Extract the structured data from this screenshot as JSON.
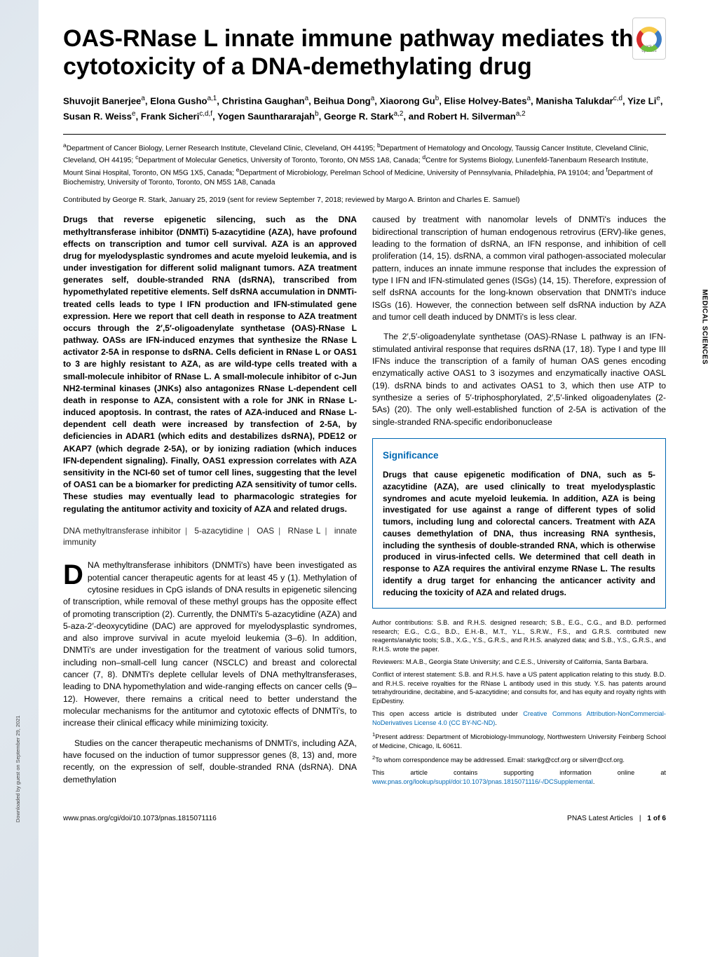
{
  "badge_text": "Check for updates",
  "title": "OAS-RNase L innate immune pathway mediates the cytotoxicity of a DNA-demethylating drug",
  "authors_html": "Shuvojit Banerjee<sup>a</sup>, Elona Gusho<sup>a,1</sup>, Christina Gaughan<sup>a</sup>, Beihua Dong<sup>a</sup>, Xiaorong Gu<sup>b</sup>, Elise Holvey-Bates<sup>a</sup>, Manisha Talukdar<sup>c,d</sup>, Yize Li<sup>e</sup>, Susan R. Weiss<sup>e</sup>, Frank Sicheri<sup>c,d,f</sup>, Yogen Saunthararajah<sup>b</sup>, George R. Stark<sup>a,2</sup>, and Robert H. Silverman<sup>a,2</sup>",
  "affiliations": "<sup>a</sup>Department of Cancer Biology, Lerner Research Institute, Cleveland Clinic, Cleveland, OH 44195; <sup>b</sup>Department of Hematology and Oncology, Taussig Cancer Institute, Cleveland Clinic, Cleveland, OH 44195; <sup>c</sup>Department of Molecular Genetics, University of Toronto, Toronto, ON M5S 1A8, Canada; <sup>d</sup>Centre for Systems Biology, Lunenfeld-Tanenbaum Research Institute, Mount Sinai Hospital, Toronto, ON M5G 1X5, Canada; <sup>e</sup>Department of Microbiology, Perelman School of Medicine, University of Pennsylvania, Philadelphia, PA 19104; and <sup>f</sup>Department of Biochemistry, University of Toronto, Toronto, ON M5S 1A8, Canada",
  "contributed": "Contributed by George R. Stark, January 25, 2019 (sent for review September 7, 2018; reviewed by Margo A. Brinton and Charles E. Samuel)",
  "abstract": "Drugs that reverse epigenetic silencing, such as the DNA methyltransferase inhibitor (DNMTi) 5-azacytidine (AZA), have profound effects on transcription and tumor cell survival. AZA is an approved drug for myelodysplastic syndromes and acute myeloid leukemia, and is under investigation for different solid malignant tumors. AZA treatment generates self, double-stranded RNA (dsRNA), transcribed from hypomethylated repetitive elements. Self dsRNA accumulation in DNMTi-treated cells leads to type I IFN production and IFN-stimulated gene expression. Here we report that cell death in response to AZA treatment occurs through the 2′,5′-oligoadenylate synthetase (OAS)-RNase L pathway. OASs are IFN-induced enzymes that synthesize the RNase L activator 2-5A in response to dsRNA. Cells deficient in RNase L or OAS1 to 3 are highly resistant to AZA, as are wild-type cells treated with a small-molecule inhibitor of RNase L. A small-molecule inhibitor of c-Jun NH2-terminal kinases (JNKs) also antagonizes RNase L-dependent cell death in response to AZA, consistent with a role for JNK in RNase L-induced apoptosis. In contrast, the rates of AZA-induced and RNase L-dependent cell death were increased by transfection of 2-5A, by deficiencies in ADAR1 (which edits and destabilizes dsRNA), PDE12 or AKAP7 (which degrade 2-5A), or by ionizing radiation (which induces IFN-dependent signaling). Finally, OAS1 expression correlates with AZA sensitivity in the NCI-60 set of tumor cell lines, suggesting that the level of OAS1 can be a biomarker for predicting AZA sensitivity of tumor cells. These studies may eventually lead to pharmacologic strategies for regulating the antitumor activity and toxicity of AZA and related drugs.",
  "keywords": [
    "DNA methyltransferase inhibitor",
    "5-azacytidine",
    "OAS",
    "RNase L",
    "innate immunity"
  ],
  "dropcap": "D",
  "intro_first": "NA methyltransferase inhibitors (DNMTi's) have been investigated as potential cancer therapeutic agents for at least 45 y (1). Methylation of cytosine residues in CpG islands of DNA results in epigenetic silencing of transcription, while removal of these methyl groups has the opposite effect of promoting transcription (2). Currently, the DNMTi's 5-azacytidine (AZA) and 5-aza-2′-deoxycytidine (DAC) are approved for myelodysplastic syndromes, and also improve survival in acute myeloid leukemia (3–6). In addition, DNMTi's are under investigation for the treatment of various solid tumors, including non–small-cell lung cancer (NSCLC) and breast and colorectal cancer (7, 8). DNMTi's deplete cellular levels of DNA methyltransferases, leading to DNA hypomethylation and wide-ranging effects on cancer cells (9–12). However, there remains a critical need to better understand the molecular mechanisms for the antitumor and cytotoxic effects of DNMTi's, to increase their clinical efficacy while minimizing toxicity.",
  "intro_second": "Studies on the cancer therapeutic mechanisms of DNMTi's, including AZA, have focused on the induction of tumor suppressor genes (8, 13) and, more recently, on the expression of self, double-stranded RNA (dsRNA). DNA demethylation",
  "col2_p1": "caused by treatment with nanomolar levels of DNMTi's induces the bidirectional transcription of human endogenous retrovirus (ERV)-like genes, leading to the formation of dsRNA, an IFN response, and inhibition of cell proliferation (14, 15). dsRNA, a common viral pathogen-associated molecular pattern, induces an innate immune response that includes the expression of type I IFN and IFN-stimulated genes (ISGs) (14, 15). Therefore, expression of self dsRNA accounts for the long-known observation that DNMTi's induce ISGs (16). However, the connection between self dsRNA induction by AZA and tumor cell death induced by DNMTi's is less clear.",
  "col2_p2": "The 2′,5′-oligoadenylate synthetase (OAS)-RNase L pathway is an IFN-stimulated antiviral response that requires dsRNA (17, 18). Type I and type III IFNs induce the transcription of a family of human OAS genes encoding enzymatically active OAS1 to 3 isozymes and enzymatically inactive OASL (19). dsRNA binds to and activates OAS1 to 3, which then use ATP to synthesize a series of 5′-triphosphorylated, 2′,5′-linked oligoadenylates (2-5As) (20). The only well-established function of 2-5A is activation of the single-stranded RNA-specific endoribonuclease",
  "significance_head": "Significance",
  "significance_body": "Drugs that cause epigenetic modification of DNA, such as 5-azacytidine (AZA), are used clinically to treat myelodysplastic syndromes and acute myeloid leukemia. In addition, AZA is being investigated for use against a range of different types of solid tumors, including lung and colorectal cancers. Treatment with AZA causes demethylation of DNA, thus increasing RNA synthesis, including the synthesis of double-stranded RNA, which is otherwise produced in virus-infected cells. We determined that cell death in response to AZA requires the antiviral enzyme RNase L. The results identify a drug target for enhancing the anticancer activity and reducing the toxicity of AZA and related drugs.",
  "author_contrib": "Author contributions: S.B. and R.H.S. designed research; S.B., E.G., C.G., and B.D. performed research; E.G., C.G., B.D., E.H.-B., M.T., Y.L., S.R.W., F.S., and G.R.S. contributed new reagents/analytic tools; S.B., X.G., Y.S., G.R.S., and R.H.S. analyzed data; and S.B., Y.S., G.R.S., and R.H.S. wrote the paper.",
  "reviewers": "Reviewers: M.A.B., Georgia State University; and C.E.S., University of California, Santa Barbara.",
  "conflict": "Conflict of interest statement: S.B. and R.H.S. have a US patent application relating to this study. B.D. and R.H.S. receive royalties for the RNase L antibody used in this study. Y.S. has patents around tetrahydrouridine, decitabine, and 5-azacytidine; and consults for, and has equity and royalty rights with EpiDestiny.",
  "open_access_pre": "This open access article is distributed under ",
  "open_access_link": "Creative Commons Attribution-NonCommercial-NoDerivatives License 4.0 (CC BY-NC-ND)",
  "present_addr": "<sup>1</sup>Present address: Department of Microbiology-Immunology, Northwestern University Feinberg School of Medicine, Chicago, IL 60611.",
  "corr": "<sup>2</sup>To whom correspondence may be addressed. Email: starkg@ccf.org or silverr@ccf.org.",
  "supp_pre": "This article contains supporting information online at ",
  "supp_link": "www.pnas.org/lookup/suppl/doi:10.1073/pnas.1815071116/-/DCSupplemental",
  "footer_left": "www.pnas.org/cgi/doi/10.1073/pnas.1815071116",
  "footer_right_1": "PNAS Latest Articles",
  "footer_right_2": "1 of 6",
  "side_label": "MEDICAL SCIENCES",
  "dl_label": "Downloaded by guest on September 29, 2021",
  "colors": {
    "link": "#0068b3",
    "sig_border": "#0068b3",
    "text": "#000000",
    "bg": "#ffffff"
  }
}
